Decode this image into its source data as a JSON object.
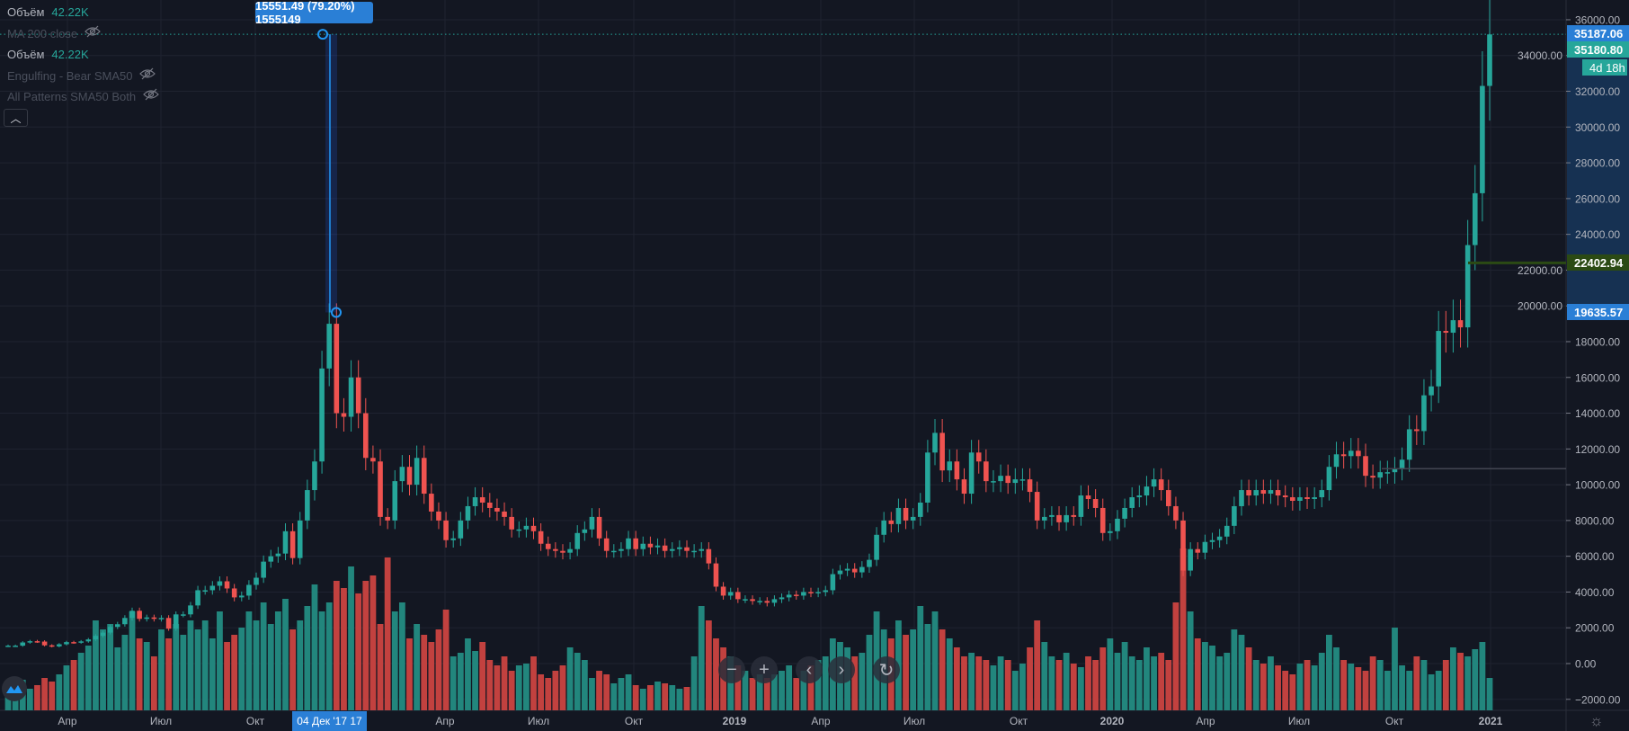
{
  "legend": {
    "rows": [
      {
        "name": "Объём",
        "value": "42.22K",
        "hidden": false
      },
      {
        "name": "MA 200 close",
        "value": "",
        "hidden": true
      },
      {
        "name": "Объём",
        "value": "42.22K",
        "hidden": false
      },
      {
        "name": "Engulfing - Bear SMA50",
        "value": "",
        "hidden": true
      },
      {
        "name": "All Patterns SMA50 Both",
        "value": "",
        "hidden": true
      }
    ],
    "collapse_icon": "chevron-up-icon"
  },
  "measure": {
    "label": "15551.49 (79.20%) 1555149",
    "from_price": 19635.57,
    "to_price": 35187.06
  },
  "axis_tags": {
    "crosshair_price": "35187.06",
    "last_price": "35180.80",
    "countdown": "4d 18h",
    "line_price": "22402.94",
    "measure_start": "19635.57"
  },
  "time_tag": "04 Дек '17  17",
  "nav_buttons": [
    "−",
    "+",
    "‹",
    "›",
    "↻"
  ],
  "colors": {
    "up": "#26a69a",
    "down": "#ef5350",
    "background": "#131722",
    "accent": "#2a7fd6",
    "line_price": "#2b4a14"
  },
  "chart_data": {
    "type": "candlestick",
    "interval": "weekly",
    "ylim": [
      -2000,
      36000
    ],
    "y_ticks": [
      -2000,
      0,
      2000,
      4000,
      6000,
      8000,
      10000,
      12000,
      14000,
      16000,
      18000,
      20000,
      22000,
      24000,
      26000,
      28000,
      30000,
      32000,
      34000,
      36000
    ],
    "x_tick_labels": [
      "Апр",
      "Июл",
      "Окт",
      "Апр",
      "Июл",
      "Окт",
      "2019",
      "Апр",
      "Июл",
      "Окт",
      "2020",
      "Апр",
      "Июл",
      "Окт",
      "2021"
    ],
    "grid": true,
    "start_open": 1000,
    "closes": [
      1000,
      1000,
      1180,
      1250,
      1230,
      1020,
      960,
      1080,
      1200,
      1180,
      1240,
      1350,
      1550,
      1730,
      2050,
      2200,
      2550,
      2950,
      2500,
      2580,
      2500,
      2550,
      1950,
      2750,
      2750,
      3250,
      4100,
      4100,
      4350,
      4600,
      4200,
      3700,
      3800,
      4400,
      4800,
      5700,
      6000,
      6150,
      7400,
      5900,
      8000,
      9700,
      11300,
      16500,
      19000,
      14000,
      13800,
      16000,
      14000,
      11500,
      11300,
      8200,
      8000,
      10200,
      11000,
      10000,
      11500,
      9500,
      8500,
      8000,
      6900,
      7000,
      8000,
      8800,
      9300,
      9000,
      8700,
      8500,
      8200,
      7500,
      7500,
      7700,
      7400,
      6700,
      6400,
      6300,
      6200,
      6400,
      7300,
      7500,
      8200,
      7000,
      6300,
      6300,
      6400,
      7000,
      6400,
      6700,
      6500,
      6600,
      6300,
      6400,
      6500,
      6300,
      6300,
      6400,
      5600,
      4300,
      3800,
      4000,
      3600,
      3600,
      3500,
      3500,
      3400,
      3600,
      3700,
      3850,
      3800,
      4000,
      3950,
      4000,
      4100,
      5000,
      5200,
      5300,
      5100,
      5400,
      5800,
      7200,
      8000,
      7800,
      8700,
      8000,
      8200,
      9000,
      11800,
      12900,
      10800,
      11300,
      10300,
      9500,
      11800,
      11300,
      10200,
      10200,
      10500,
      10100,
      10300,
      10300,
      9600,
      8000,
      8200,
      8300,
      7900,
      8300,
      8200,
      9400,
      9200,
      8700,
      7300,
      7400,
      8100,
      8700,
      9300,
      9400,
      9900,
      10300,
      9700,
      8800,
      8000,
      5200,
      6400,
      6200,
      6800,
      6900,
      7100,
      7700,
      8800,
      9700,
      9400,
      9700,
      9500,
      9700,
      9400,
      9300,
      9100,
      9300,
      9200,
      9300,
      9700,
      11000,
      11700,
      11600,
      11900,
      11600,
      10500,
      10400,
      10700,
      10700,
      10900,
      11400,
      13100,
      13000,
      15000,
      15500,
      18600,
      18500,
      19200,
      18800,
      23400,
      26300,
      32300,
      35180
    ],
    "volume_relative": [
      15,
      18,
      17,
      12,
      14,
      18,
      16,
      20,
      25,
      28,
      32,
      36,
      50,
      45,
      48,
      35,
      42,
      55,
      40,
      38,
      30,
      45,
      40,
      48,
      42,
      50,
      45,
      50,
      40,
      55,
      38,
      42,
      46,
      55,
      50,
      60,
      48,
      55,
      62,
      45,
      50,
      58,
      70,
      55,
      60,
      72,
      68,
      80,
      65,
      72,
      75,
      48,
      85,
      55,
      60,
      40,
      48,
      42,
      38,
      45,
      56,
      30,
      32,
      40,
      33,
      38,
      28,
      25,
      30,
      22,
      25,
      26,
      30,
      20,
      18,
      22,
      25,
      35,
      32,
      28,
      18,
      22,
      20,
      15,
      18,
      20,
      14,
      12,
      14,
      16,
      15,
      14,
      12,
      13,
      30,
      58,
      50,
      40,
      35,
      30,
      25,
      22,
      18,
      20,
      18,
      20,
      22,
      25,
      18,
      22,
      25,
      28,
      30,
      40,
      38,
      35,
      30,
      32,
      42,
      55,
      45,
      40,
      50,
      42,
      45,
      58,
      48,
      55,
      45,
      40,
      35,
      30,
      32,
      30,
      28,
      25,
      30,
      28,
      22,
      26,
      35,
      50,
      38,
      30,
      28,
      32,
      26,
      24,
      30,
      28,
      35,
      40,
      32,
      38,
      30,
      28,
      35,
      30,
      32,
      28,
      60,
      90,
      55,
      40,
      38,
      36,
      30,
      32,
      45,
      42,
      35,
      28,
      26,
      30,
      25,
      22,
      20,
      26,
      28,
      25,
      32,
      42,
      35,
      28,
      26,
      24,
      22,
      30,
      28,
      22,
      46,
      25,
      22,
      30,
      28,
      20,
      22,
      28,
      35,
      32,
      30,
      34,
      38,
      18
    ],
    "horizontal_lines": [
      22402.94,
      10900
    ]
  }
}
